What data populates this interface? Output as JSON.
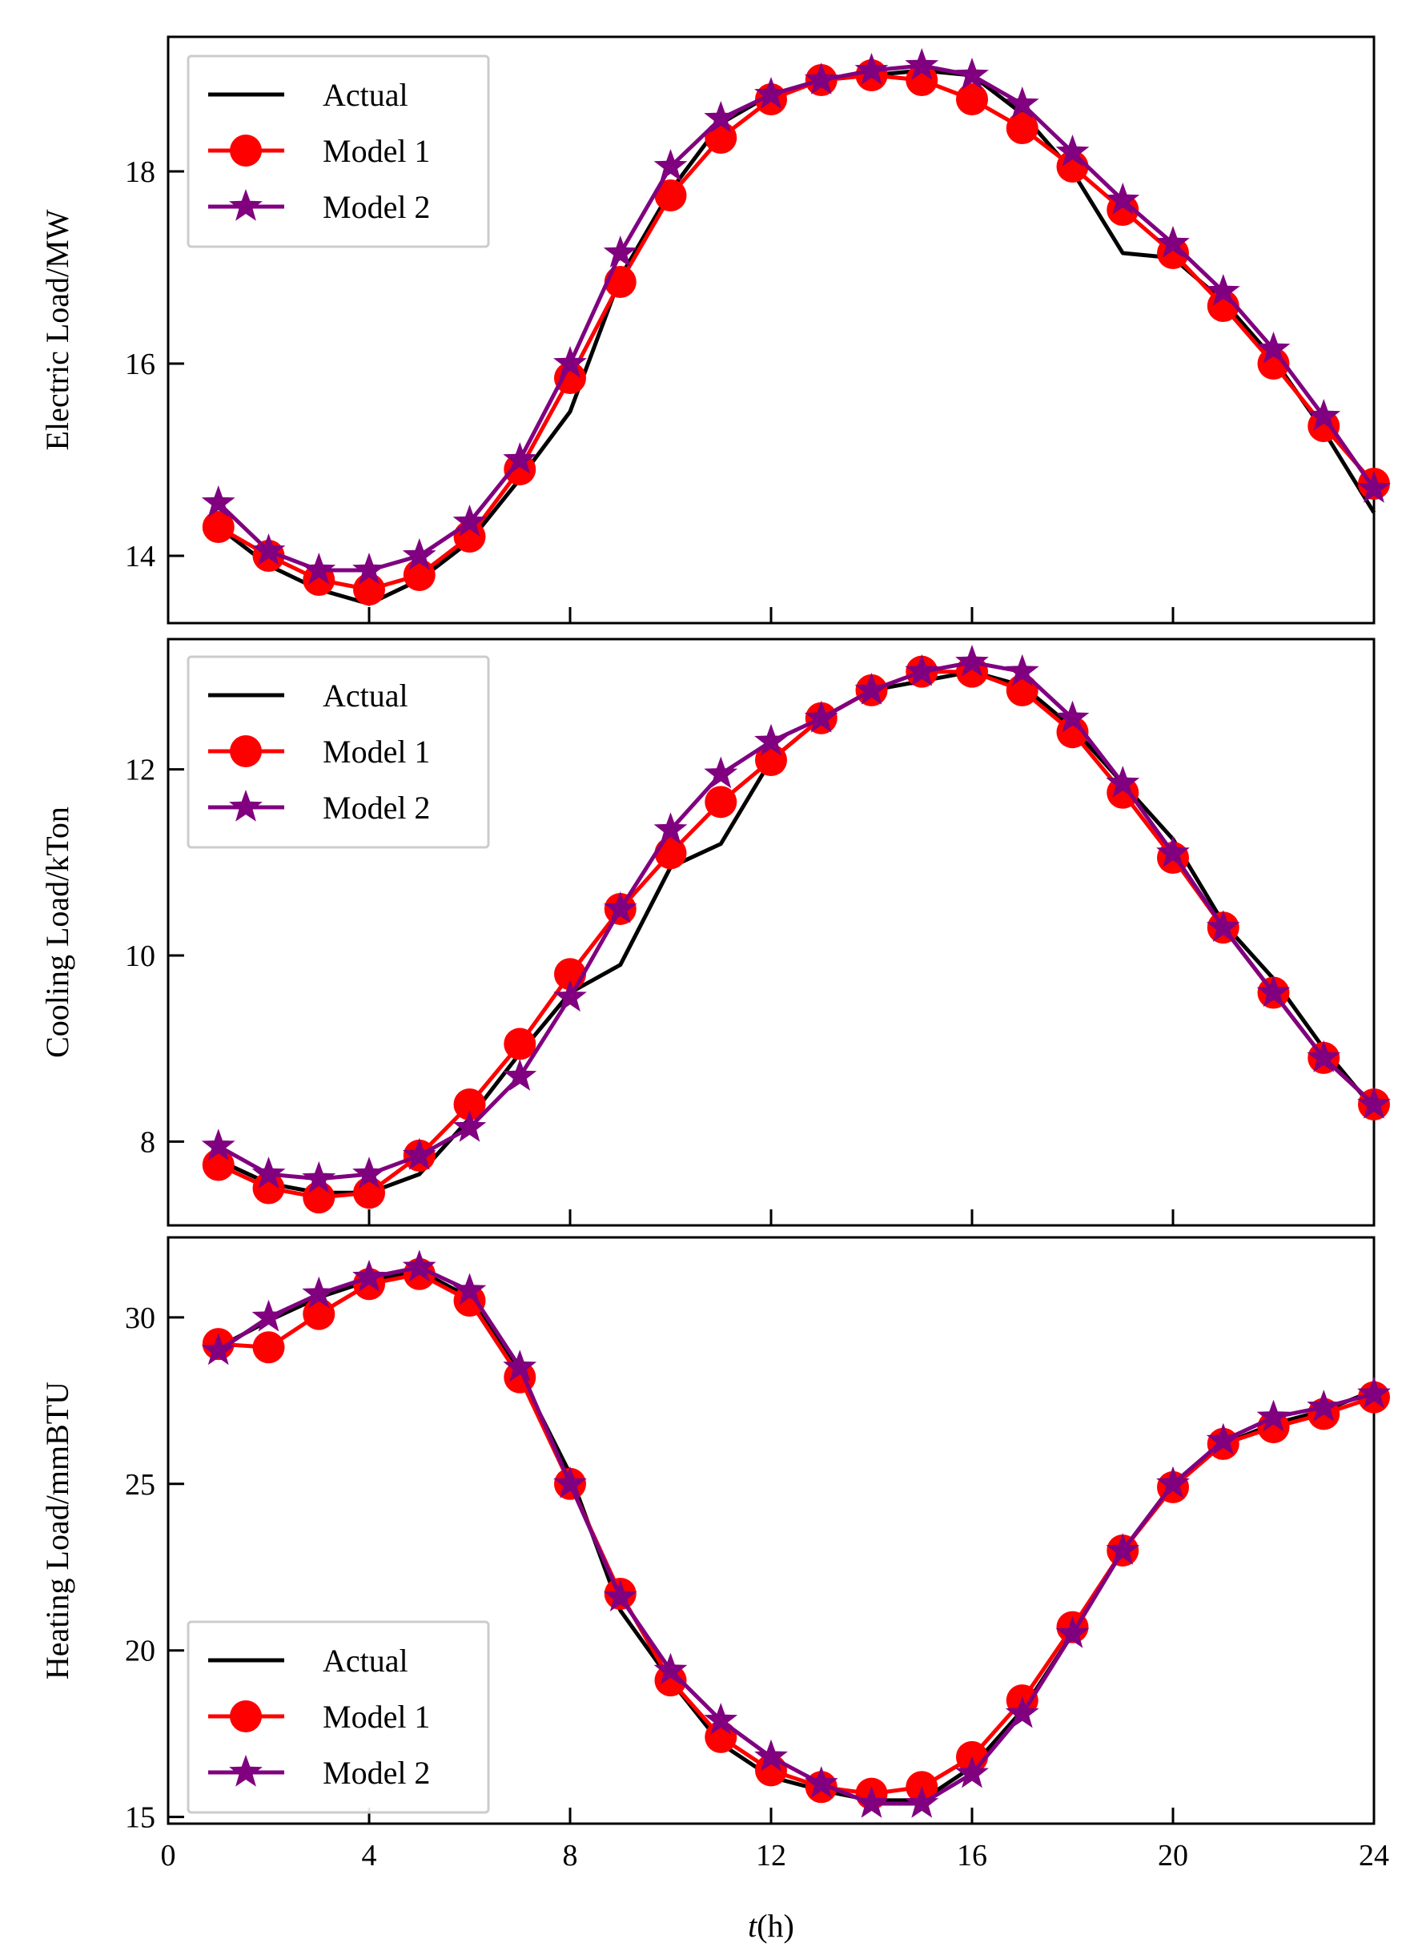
{
  "figure": {
    "xlabel_italic": "t",
    "xlabel_rest": "(h)"
  },
  "colors": {
    "actual": "#000000",
    "model1": "#ff0000",
    "model2": "#800080"
  },
  "chart_data": [
    {
      "type": "line",
      "ylabel": "Electric Load/MW",
      "x": [
        1,
        2,
        3,
        4,
        5,
        6,
        7,
        8,
        9,
        10,
        11,
        12,
        13,
        14,
        15,
        16,
        17,
        18,
        19,
        20,
        21,
        22,
        23,
        24
      ],
      "xlim": [
        0,
        24
      ],
      "xticks": [
        0,
        4,
        8,
        12,
        16,
        20,
        24
      ],
      "ylim": [
        13.3,
        19.4
      ],
      "yticks": [
        14,
        16,
        18
      ],
      "legend_position": "top-left",
      "series": [
        {
          "name": "Actual",
          "marker": "none",
          "values": [
            14.3,
            13.9,
            13.65,
            13.5,
            13.75,
            14.15,
            14.8,
            15.5,
            16.9,
            17.8,
            18.5,
            18.8,
            18.95,
            19.0,
            19.05,
            19.0,
            18.6,
            18.0,
            17.15,
            17.1,
            16.65,
            16.05,
            15.3,
            14.45
          ]
        },
        {
          "name": "Model 1",
          "marker": "circle",
          "values": [
            14.3,
            14.0,
            13.75,
            13.65,
            13.8,
            14.2,
            14.9,
            15.85,
            16.85,
            17.75,
            18.35,
            18.75,
            18.95,
            19.0,
            18.95,
            18.75,
            18.45,
            18.05,
            17.6,
            17.15,
            16.6,
            16.0,
            15.35,
            14.75
          ]
        },
        {
          "name": "Model 2",
          "marker": "star",
          "values": [
            14.55,
            14.05,
            13.85,
            13.85,
            14.0,
            14.35,
            15.0,
            16.0,
            17.15,
            18.05,
            18.55,
            18.8,
            18.95,
            19.05,
            19.1,
            19.0,
            18.7,
            18.2,
            17.7,
            17.25,
            16.75,
            16.15,
            15.45,
            14.7
          ]
        }
      ]
    },
    {
      "type": "line",
      "ylabel": "Cooling Load/kTon",
      "x": [
        1,
        2,
        3,
        4,
        5,
        6,
        7,
        8,
        9,
        10,
        11,
        12,
        13,
        14,
        15,
        16,
        17,
        18,
        19,
        20,
        21,
        22,
        23,
        24
      ],
      "xlim": [
        0,
        24
      ],
      "xticks": [
        0,
        4,
        8,
        12,
        16,
        20,
        24
      ],
      "ylim": [
        7.1,
        13.4
      ],
      "yticks": [
        8,
        10,
        12
      ],
      "legend_position": "top-left",
      "series": [
        {
          "name": "Actual",
          "marker": "none",
          "values": [
            7.8,
            7.55,
            7.45,
            7.45,
            7.65,
            8.25,
            8.95,
            9.6,
            9.9,
            10.95,
            11.2,
            12.1,
            12.55,
            12.85,
            12.95,
            13.05,
            12.9,
            12.45,
            11.85,
            11.25,
            10.35,
            9.75,
            9.0,
            8.35
          ]
        },
        {
          "name": "Model 1",
          "marker": "circle",
          "values": [
            7.75,
            7.5,
            7.4,
            7.45,
            7.85,
            8.4,
            9.05,
            9.8,
            10.5,
            11.1,
            11.65,
            12.1,
            12.55,
            12.85,
            13.05,
            13.05,
            12.85,
            12.4,
            11.75,
            11.05,
            10.3,
            9.6,
            8.9,
            8.4
          ]
        },
        {
          "name": "Model 2",
          "marker": "star",
          "values": [
            7.95,
            7.65,
            7.6,
            7.65,
            7.85,
            8.15,
            8.7,
            9.55,
            10.5,
            11.35,
            11.95,
            12.3,
            12.55,
            12.85,
            13.05,
            13.15,
            13.05,
            12.55,
            11.85,
            11.1,
            10.3,
            9.6,
            8.9,
            8.4
          ]
        }
      ]
    },
    {
      "type": "line",
      "ylabel": "Heating Load/mmBTU",
      "x": [
        1,
        2,
        3,
        4,
        5,
        6,
        7,
        8,
        9,
        10,
        11,
        12,
        13,
        14,
        15,
        16,
        17,
        18,
        19,
        20,
        21,
        22,
        23,
        24
      ],
      "xlim": [
        0,
        24
      ],
      "xticks": [
        0,
        4,
        8,
        12,
        16,
        20,
        24
      ],
      "ylim": [
        14.8,
        32.4
      ],
      "yticks": [
        15,
        20,
        25,
        30
      ],
      "legend_position": "bottom-left",
      "series": [
        {
          "name": "Actual",
          "marker": "none",
          "values": [
            29.1,
            29.9,
            30.6,
            31.1,
            31.4,
            30.6,
            28.3,
            25.3,
            21.2,
            19.1,
            17.2,
            16.2,
            15.8,
            15.5,
            15.5,
            16.5,
            18.2,
            20.5,
            23.0,
            25.0,
            26.2,
            26.8,
            27.2,
            27.8
          ]
        },
        {
          "name": "Model 1",
          "marker": "circle",
          "values": [
            29.2,
            29.1,
            30.1,
            31.0,
            31.3,
            30.5,
            28.2,
            25.0,
            21.7,
            19.1,
            17.4,
            16.4,
            15.9,
            15.7,
            15.9,
            16.8,
            18.5,
            20.7,
            23.0,
            24.9,
            26.2,
            26.7,
            27.1,
            27.6
          ]
        },
        {
          "name": "Model 2",
          "marker": "star",
          "values": [
            29.0,
            30.0,
            30.7,
            31.2,
            31.5,
            30.8,
            28.5,
            25.0,
            21.6,
            19.4,
            17.9,
            16.8,
            16.0,
            15.4,
            15.4,
            16.3,
            18.1,
            20.5,
            23.0,
            25.0,
            26.3,
            27.0,
            27.3,
            27.7
          ]
        }
      ]
    }
  ]
}
